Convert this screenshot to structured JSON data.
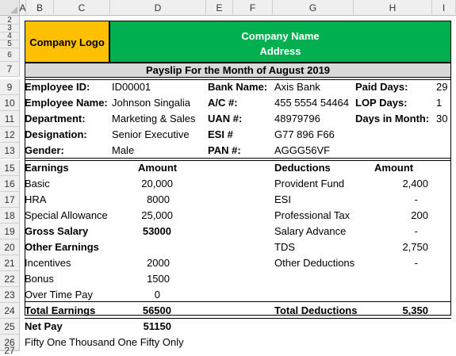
{
  "columns": [
    "A",
    "B",
    "C",
    "D",
    "E",
    "F",
    "G",
    "H",
    "I"
  ],
  "rows": [
    "2",
    "3",
    "4",
    "5",
    "6",
    "7",
    "9",
    "10",
    "11",
    "12",
    "13",
    "15",
    "16",
    "17",
    "18",
    "19",
    "20",
    "21",
    "22",
    "23",
    "24",
    "25",
    "26",
    "27"
  ],
  "header": {
    "logo": "Company Logo",
    "company_name": "Company Name",
    "address": "Address",
    "title": "Payslip For the Month of August 2019"
  },
  "colors": {
    "logo_bg": "#ffc000",
    "company_bg": "#00b050",
    "title_bg": "#d9d9d9"
  },
  "employee": {
    "id_label": "Employee ID:",
    "id": "ID00001",
    "name_label": "Employee Name:",
    "name": "Johnson Singalia",
    "dept_label": "Department:",
    "dept": "Marketing & Sales",
    "desig_label": "Designation:",
    "desig": "Senior Executive",
    "gender_label": "Gender:",
    "gender": "Male",
    "bank_label": "Bank Name:",
    "bank": "Axis Bank",
    "ac_label": "A/C #:",
    "ac": "455 5554 54464",
    "uan_label": "UAN #:",
    "uan": "48979796",
    "esi_label": "ESI #",
    "esi": "G77 896 F66",
    "pan_label": "PAN #:",
    "pan": "AGGG56VF",
    "paid_label": "Paid Days:",
    "paid": "29",
    "lop_label": "LOP Days:",
    "lop": "1",
    "dim_label": "Days in Month:",
    "dim": "30"
  },
  "earnings": {
    "hdr": "Earnings",
    "amt_hdr": "Amount",
    "basic_l": "Basic",
    "basic": "20,000",
    "hra_l": "HRA",
    "hra": "8000",
    "sa_l": "Special Allowance",
    "sa": "25,000",
    "gross_l": "Gross Salary",
    "gross": "53000",
    "other_l": "Other Earnings",
    "inc_l": "Incentives",
    "inc": "2000",
    "bonus_l": "Bonus",
    "bonus": "1500",
    "ot_l": "Over Time Pay",
    "ot": "0",
    "total_l": "Total Earnings",
    "total": "56500",
    "net_l": "Net Pay",
    "net": "51150",
    "words": "Fifty One Thousand One Fifty Only"
  },
  "deductions": {
    "hdr": "Deductions",
    "amt_hdr": "Amount",
    "pf_l": "Provident Fund",
    "pf": "2,400",
    "esi_l": "ESI",
    "esi": "-",
    "pt_l": "Professional Tax",
    "pt": "200",
    "adv_l": "Salary Advance",
    "adv": "-",
    "tds_l": "TDS",
    "tds": "2,750",
    "oth_l": "Other Deductions",
    "oth": "-",
    "total_l": "Total Deductions",
    "total": "5,350"
  }
}
